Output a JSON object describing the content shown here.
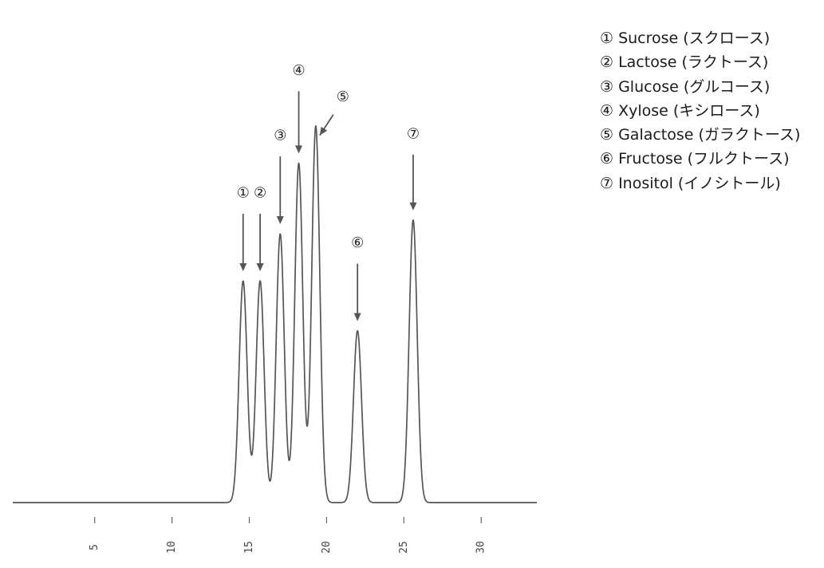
{
  "chart_data": {
    "type": "line",
    "title": "",
    "xlabel": "",
    "ylabel": "",
    "xlim": [
      -0.3,
      33.6
    ],
    "ylim": [
      0,
      100
    ],
    "x_ticks": [
      5,
      10,
      15,
      20,
      25,
      30
    ],
    "x_tick_labels": [
      "5",
      "10",
      "15",
      "20",
      "25",
      "30"
    ],
    "grid": false,
    "legend_placement": "top-right, outside plot",
    "line_color": "#555555",
    "baseline": 0,
    "peaks": [
      {
        "marker": "①",
        "time": 14.6,
        "height": 56.5,
        "label": "① Sucrose (スクロース)"
      },
      {
        "marker": "②",
        "time": 15.7,
        "height": 56.5,
        "label": "② Lactose (ラクトース)"
      },
      {
        "marker": "③",
        "time": 17.0,
        "height": 68.5,
        "label": "③ Glucose (グルコース)"
      },
      {
        "marker": "④",
        "time": 18.2,
        "height": 86.5,
        "label": "④ Xylose (キシロース)"
      },
      {
        "marker": "⑤",
        "time": 19.3,
        "height": 96.0,
        "label": "⑤ Galactose (ガラクトース)"
      },
      {
        "marker": "⑥",
        "time": 22.0,
        "height": 43.8,
        "label": "⑥ Fructose (フルクトース)"
      },
      {
        "marker": "⑦",
        "time": 25.6,
        "height": 72.0,
        "label": "⑦ Inositol (イノシトール)"
      }
    ]
  }
}
